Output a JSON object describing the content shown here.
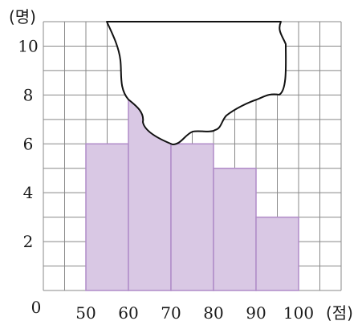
{
  "chart_data": {
    "type": "bar",
    "subtype": "histogram",
    "bins": [
      {
        "from": 50,
        "to": 60,
        "value": 6
      },
      {
        "from": 60,
        "to": 70,
        "value": 8
      },
      {
        "from": 70,
        "to": 80,
        "value": 6
      },
      {
        "from": 80,
        "to": 90,
        "value": 5
      },
      {
        "from": 90,
        "to": 100,
        "value": 3
      }
    ],
    "x_ticks": [
      "50",
      "60",
      "70",
      "80",
      "90",
      "100"
    ],
    "y_ticks": [
      "2",
      "4",
      "6",
      "8",
      "10"
    ],
    "origin_label": "0",
    "xlabel": "(점)",
    "ylabel": "(명)",
    "xlim": [
      40,
      110
    ],
    "ylim": [
      0,
      11
    ],
    "grid": true,
    "occluded": "torn region covers the upper parts of the 60-70, 70-80 and 80-90 bars",
    "colors": {
      "bar_fill": "#d9c8e4",
      "bar_stroke": "#b08cc8",
      "grid": "#888888"
    }
  }
}
